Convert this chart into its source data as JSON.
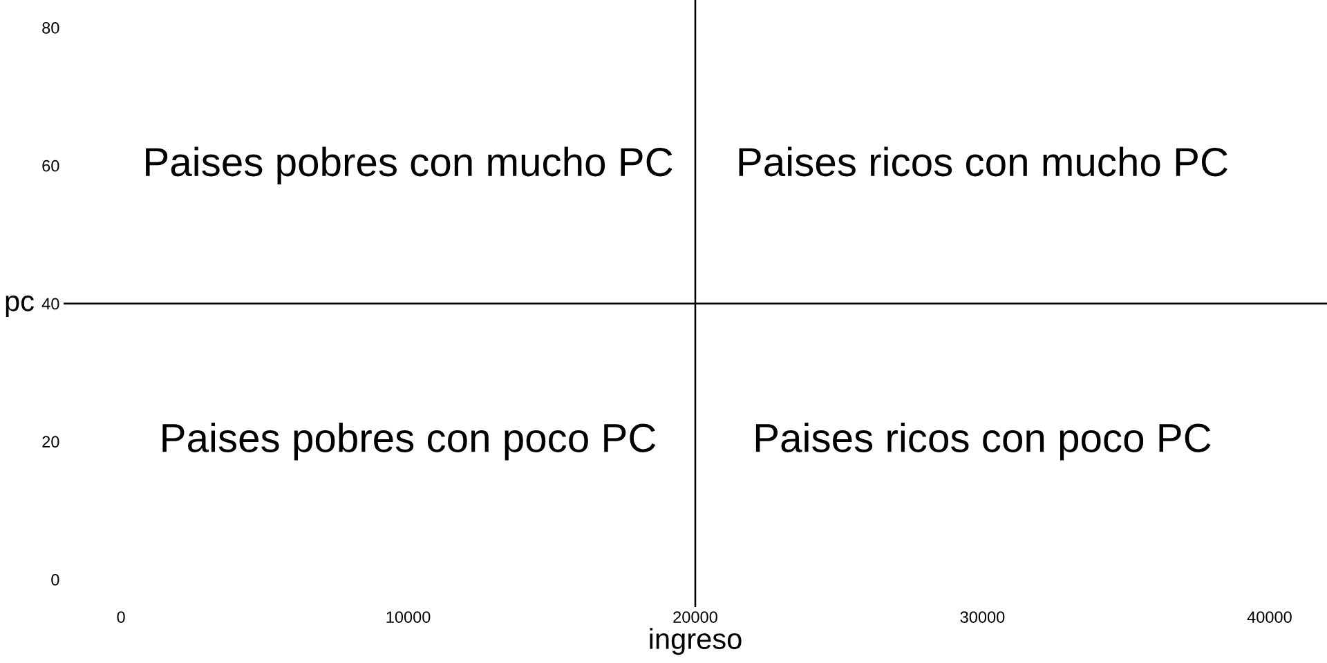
{
  "chart_data": {
    "type": "scatter",
    "xlabel": "ingreso",
    "ylabel": "pc",
    "xlim": [
      -2000,
      42000
    ],
    "ylim": [
      -4,
      84
    ],
    "xticks": [
      0,
      10000,
      20000,
      30000,
      40000
    ],
    "yticks": [
      0,
      20,
      40,
      60,
      80
    ],
    "grid": false,
    "ref_lines": [
      {
        "axis": "x",
        "value": 20000,
        "color": "#000000"
      },
      {
        "axis": "y",
        "value": 40,
        "color": "#000000"
      }
    ],
    "annotations": [
      "Paises pobres con mucho PC",
      "Paises ricos con mucho PC",
      "Paises pobres con poco PC",
      "Paises ricos con poco PC"
    ]
  }
}
